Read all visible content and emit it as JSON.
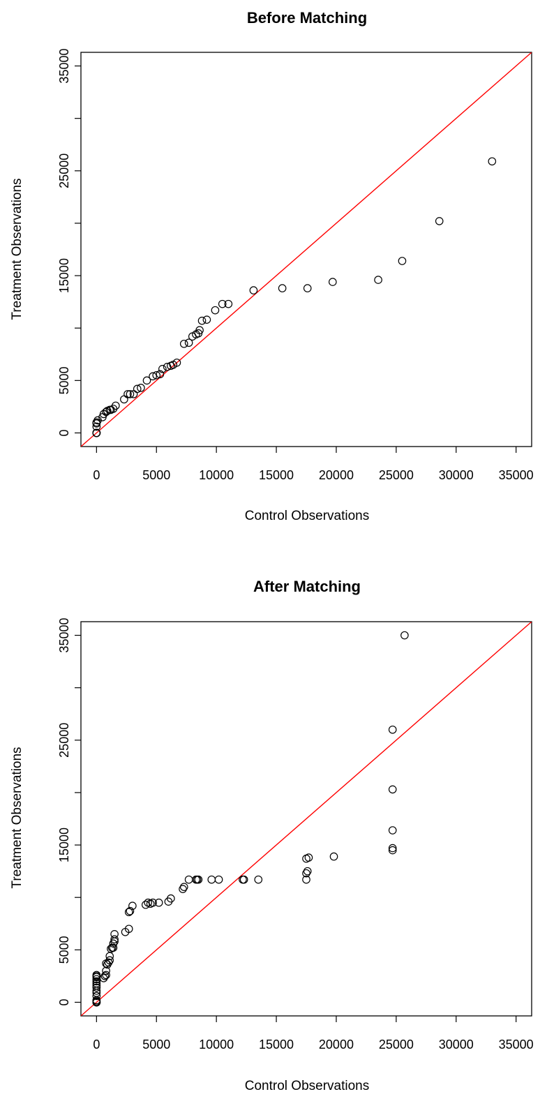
{
  "chart_data": [
    {
      "type": "scatter",
      "title": "Before Matching",
      "xlabel": "Control Observations",
      "ylabel": "Treatment Observations",
      "xlim": [
        -1300,
        36300
      ],
      "ylim": [
        -1300,
        36300
      ],
      "xticks": [
        0,
        5000,
        10000,
        15000,
        20000,
        25000,
        30000,
        35000
      ],
      "yticks": [
        0,
        5000,
        15000,
        25000,
        35000
      ],
      "reference_line": {
        "type": "y=x",
        "color": "#ff0000"
      },
      "grid": false,
      "points": [
        [
          0,
          0
        ],
        [
          0,
          0
        ],
        [
          0,
          0
        ],
        [
          0,
          0
        ],
        [
          0,
          0
        ],
        [
          0,
          0
        ],
        [
          0,
          0
        ],
        [
          0,
          0
        ],
        [
          0,
          600
        ],
        [
          0,
          900
        ],
        [
          0,
          1000
        ],
        [
          100,
          1200
        ],
        [
          500,
          1500
        ],
        [
          600,
          1800
        ],
        [
          800,
          2000
        ],
        [
          900,
          2100
        ],
        [
          1100,
          2200
        ],
        [
          1200,
          2200
        ],
        [
          1400,
          2300
        ],
        [
          1600,
          2600
        ],
        [
          2300,
          3200
        ],
        [
          2600,
          3700
        ],
        [
          2800,
          3700
        ],
        [
          3100,
          3700
        ],
        [
          3400,
          4200
        ],
        [
          3700,
          4300
        ],
        [
          4200,
          5000
        ],
        [
          4700,
          5400
        ],
        [
          5000,
          5500
        ],
        [
          5300,
          5600
        ],
        [
          5500,
          6100
        ],
        [
          5900,
          6300
        ],
        [
          6200,
          6400
        ],
        [
          6400,
          6500
        ],
        [
          6700,
          6700
        ],
        [
          7300,
          8500
        ],
        [
          7700,
          8600
        ],
        [
          8000,
          9200
        ],
        [
          8300,
          9400
        ],
        [
          8500,
          9500
        ],
        [
          8600,
          9800
        ],
        [
          8800,
          10700
        ],
        [
          9200,
          10800
        ],
        [
          9900,
          11700
        ],
        [
          10500,
          12300
        ],
        [
          11000,
          12300
        ],
        [
          13100,
          13600
        ],
        [
          15500,
          13800
        ],
        [
          17600,
          13800
        ],
        [
          19700,
          14400
        ],
        [
          23500,
          14600
        ],
        [
          25500,
          16400
        ],
        [
          28600,
          20200
        ],
        [
          33000,
          25900
        ]
      ]
    },
    {
      "type": "scatter",
      "title": "After Matching",
      "xlabel": "Control Observations",
      "ylabel": "Treatment Observations",
      "xlim": [
        -1300,
        36300
      ],
      "ylim": [
        -1300,
        36300
      ],
      "xticks": [
        0,
        5000,
        10000,
        15000,
        20000,
        25000,
        30000,
        35000
      ],
      "yticks": [
        0,
        5000,
        15000,
        25000,
        35000
      ],
      "reference_line": {
        "type": "y=x",
        "color": "#ff0000"
      },
      "grid": false,
      "points": [
        [
          0,
          0
        ],
        [
          0,
          0
        ],
        [
          0,
          0
        ],
        [
          0,
          0
        ],
        [
          0,
          0
        ],
        [
          0,
          100
        ],
        [
          0,
          200
        ],
        [
          0,
          600
        ],
        [
          0,
          900
        ],
        [
          0,
          1100
        ],
        [
          0,
          1400
        ],
        [
          0,
          1600
        ],
        [
          0,
          1800
        ],
        [
          0,
          2000
        ],
        [
          0,
          2200
        ],
        [
          0,
          2400
        ],
        [
          0,
          2500
        ],
        [
          0,
          2600
        ],
        [
          600,
          2300
        ],
        [
          700,
          2500
        ],
        [
          800,
          2600
        ],
        [
          800,
          3000
        ],
        [
          800,
          3700
        ],
        [
          900,
          3600
        ],
        [
          1000,
          3800
        ],
        [
          1100,
          4000
        ],
        [
          1100,
          4400
        ],
        [
          1200,
          5100
        ],
        [
          1300,
          5200
        ],
        [
          1400,
          5200
        ],
        [
          1400,
          5600
        ],
        [
          1500,
          5800
        ],
        [
          1500,
          6000
        ],
        [
          1500,
          6500
        ],
        [
          2400,
          6700
        ],
        [
          2700,
          7000
        ],
        [
          2700,
          8600
        ],
        [
          2800,
          8700
        ],
        [
          3000,
          9200
        ],
        [
          4100,
          9300
        ],
        [
          4300,
          9500
        ],
        [
          4500,
          9400
        ],
        [
          4700,
          9500
        ],
        [
          5200,
          9500
        ],
        [
          6000,
          9600
        ],
        [
          6200,
          9900
        ],
        [
          7200,
          10800
        ],
        [
          7300,
          11000
        ],
        [
          7700,
          11700
        ],
        [
          8300,
          11700
        ],
        [
          8400,
          11700
        ],
        [
          8500,
          11700
        ],
        [
          9600,
          11700
        ],
        [
          10200,
          11700
        ],
        [
          12200,
          11700
        ],
        [
          12300,
          11700
        ],
        [
          13500,
          11700
        ],
        [
          17500,
          11700
        ],
        [
          17500,
          12300
        ],
        [
          17600,
          12500
        ],
        [
          17500,
          13700
        ],
        [
          17700,
          13800
        ],
        [
          19800,
          13900
        ],
        [
          24700,
          14500
        ],
        [
          24700,
          14700
        ],
        [
          24700,
          16400
        ],
        [
          24700,
          20300
        ],
        [
          24700,
          26000
        ],
        [
          25700,
          35000
        ]
      ]
    }
  ]
}
